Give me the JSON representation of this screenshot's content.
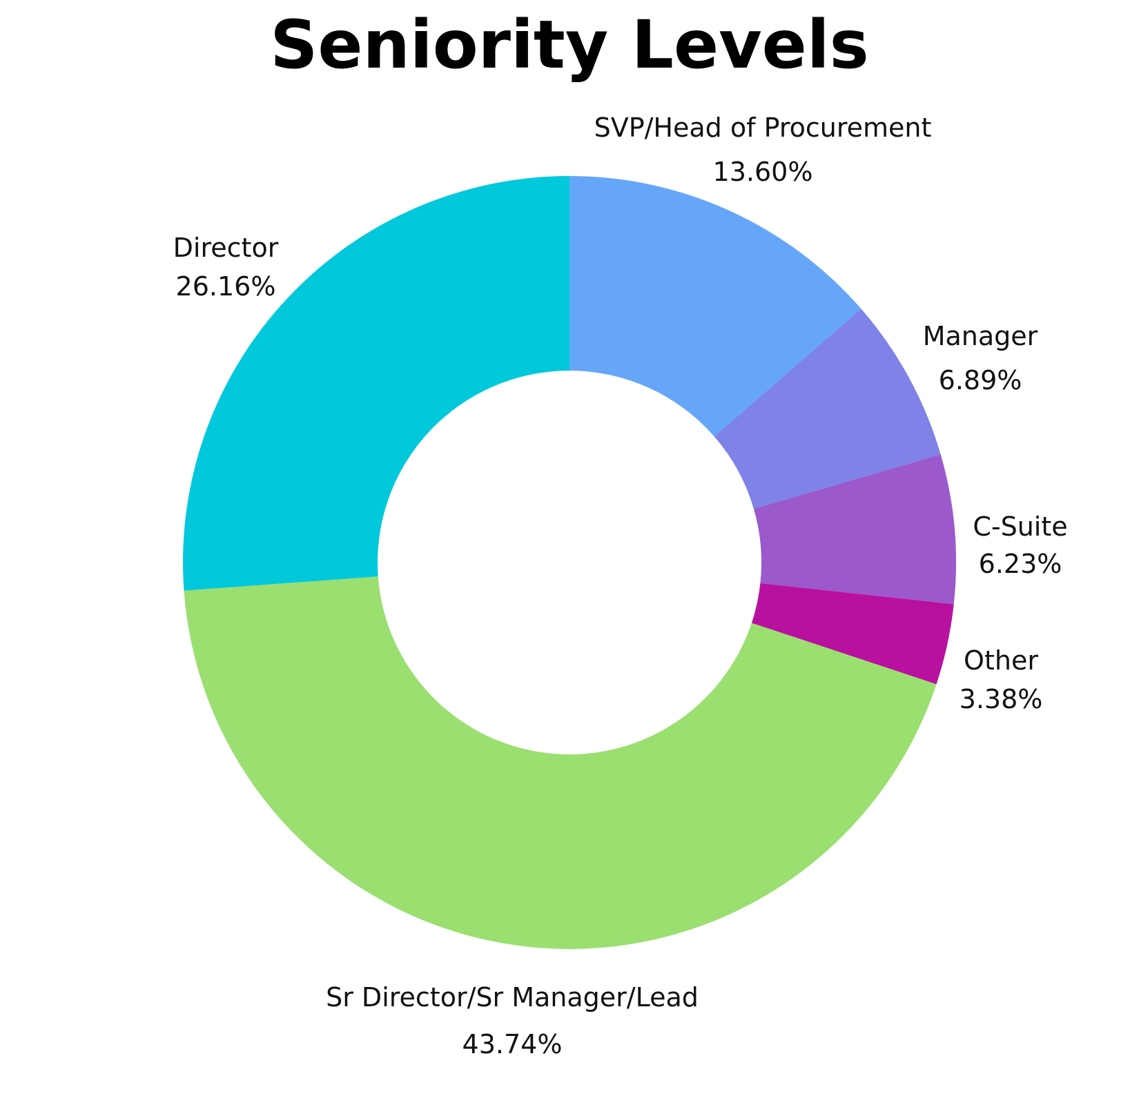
{
  "chart_data": {
    "type": "pie",
    "variant": "donut",
    "title": "Seniority Levels",
    "slices": [
      {
        "label": "SVP/Head of Procurement",
        "value": 13.6,
        "value_label": "13.60%",
        "color": "#66A6F8"
      },
      {
        "label": "Manager",
        "value": 6.89,
        "value_label": "6.89%",
        "color": "#7F82E6"
      },
      {
        "label": "C-Suite",
        "value": 6.23,
        "value_label": "6.23%",
        "color": "#9B59CB"
      },
      {
        "label": "Other",
        "value": 3.38,
        "value_label": "3.38%",
        "color": "#B9119F"
      },
      {
        "label": "Sr Director/Sr Manager/Lead",
        "value": 43.74,
        "value_label": "43.74%",
        "color": "#9ADF70"
      },
      {
        "label": "Director",
        "value": 26.16,
        "value_label": "26.16%",
        "color": "#02C8DC"
      }
    ],
    "start_angle": "12 o'clock",
    "direction": "clockwise",
    "legend": "none",
    "labels_position": "outside"
  }
}
